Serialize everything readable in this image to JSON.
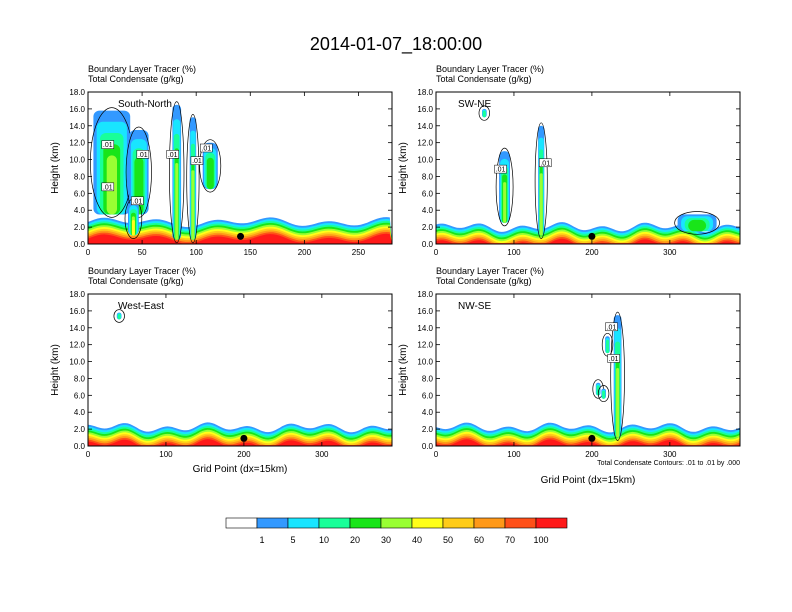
{
  "title": "2014-01-07_18:00:00",
  "colors": {
    "scale": [
      "#ffffff",
      "#3399ff",
      "#19e5ff",
      "#19ff99",
      "#19e519",
      "#99ff33",
      "#ffff19",
      "#ffcc19",
      "#ff9919",
      "#ff5019",
      "#ff1919"
    ]
  },
  "chart_data": [
    {
      "type": "heatmap",
      "id": "south-north",
      "header_line1": "Boundary Layer Tracer   (%)",
      "header_line2": "Total Condensate   (g/kg)",
      "section_label": "South-North",
      "ylabel": "Height (km)",
      "xlabel": "",
      "xlim": [
        0,
        281
      ],
      "ylim": [
        0,
        18
      ],
      "xticks": [
        0,
        50,
        100,
        150,
        200,
        250
      ],
      "yticks": [
        "0.0",
        "2.0",
        "4.0",
        "6.0",
        "8.0",
        "10.0",
        "12.0",
        "14.0",
        "16.0",
        "18.0"
      ],
      "marker_x": 141,
      "contour_labels": [
        ".01",
        ".01",
        ".01",
        ".01",
        ".01",
        ".01",
        ".01"
      ]
    },
    {
      "type": "heatmap",
      "id": "sw-ne",
      "header_line1": "Boundary Layer Tracer   (%)",
      "header_line2": "Total Condensate   (g/kg)",
      "section_label": "SW-NE",
      "ylabel": "Height (km)",
      "xlabel": "",
      "xlim": [
        0,
        390
      ],
      "ylim": [
        0,
        18
      ],
      "xticks": [
        0,
        100,
        200,
        300
      ],
      "yticks": [
        "0.0",
        "2.0",
        "4.0",
        "6.0",
        "8.0",
        "10.0",
        "12.0",
        "14.0",
        "16.0",
        "18.0"
      ],
      "marker_x": 200,
      "contour_labels": [
        ".01",
        ".01"
      ]
    },
    {
      "type": "heatmap",
      "id": "west-east",
      "header_line1": "Boundary Layer Tracer   (%)",
      "header_line2": "Total Condensate   (g/kg)",
      "section_label": "West-East",
      "ylabel": "Height (km)",
      "xlabel": "Grid Point (dx=15km)",
      "xlim": [
        0,
        390
      ],
      "ylim": [
        0,
        18
      ],
      "xticks": [
        0,
        100,
        200,
        300
      ],
      "yticks": [
        "0.0",
        "2.0",
        "4.0",
        "6.0",
        "8.0",
        "10.0",
        "12.0",
        "14.0",
        "16.0",
        "18.0"
      ],
      "marker_x": 200,
      "contour_labels": []
    },
    {
      "type": "heatmap",
      "id": "nw-se",
      "header_line1": "Boundary Layer Tracer   (%)",
      "header_line2": "Total Condensate   (g/kg)",
      "section_label": "NW-SE",
      "ylabel": "Height (km)",
      "xlabel": "Grid Point (dx=15km)",
      "xlim": [
        0,
        390
      ],
      "ylim": [
        0,
        18
      ],
      "xticks": [
        0,
        100,
        200,
        300
      ],
      "yticks": [
        "0.0",
        "2.0",
        "4.0",
        "6.0",
        "8.0",
        "10.0",
        "12.0",
        "14.0",
        "16.0",
        "18.0"
      ],
      "marker_x": 200,
      "contour_labels": [
        ".01",
        ".01"
      ],
      "contour_note": "Total Condensate Contours: .01 to .01 by .000"
    }
  ],
  "colorbar": {
    "labels": [
      "1",
      "5",
      "10",
      "20",
      "30",
      "40",
      "50",
      "60",
      "70",
      "100"
    ]
  }
}
